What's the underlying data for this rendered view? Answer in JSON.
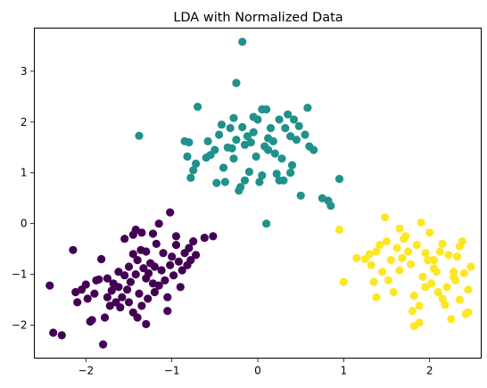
{
  "chart_data": {
    "type": "scatter",
    "title": "LDA with Normalized Data",
    "xlabel": "",
    "ylabel": "",
    "xlim": [
      -2.6,
      2.6
    ],
    "ylim": [
      -2.65,
      3.85
    ],
    "xticks": [
      -2,
      -1,
      0,
      1,
      2
    ],
    "yticks": [
      -2,
      -1,
      0,
      1,
      2,
      3
    ],
    "xtick_labels": [
      "−2",
      "−1",
      "0",
      "1",
      "2"
    ],
    "ytick_labels": [
      "−2",
      "−1",
      "0",
      "1",
      "2",
      "3"
    ],
    "grid": false,
    "legend": false,
    "series": [
      {
        "color": "#440154",
        "points": [
          [
            -2.42,
            -1.22
          ],
          [
            -2.38,
            -2.15
          ],
          [
            -2.28,
            -2.2
          ],
          [
            -2.1,
            -1.55
          ],
          [
            -2.05,
            -1.3
          ],
          [
            -2.0,
            -1.2
          ],
          [
            -1.98,
            -1.48
          ],
          [
            -1.95,
            -1.93
          ],
          [
            -1.93,
            -1.9
          ],
          [
            -1.9,
            -1.38
          ],
          [
            -1.85,
            -1.1
          ],
          [
            -1.82,
            -0.7
          ],
          [
            -1.8,
            -2.38
          ],
          [
            -1.78,
            -1.85
          ],
          [
            -1.75,
            -1.45
          ],
          [
            -1.7,
            -1.32
          ],
          [
            -1.68,
            -1.18
          ],
          [
            -1.65,
            -1.55
          ],
          [
            -1.62,
            -1.25
          ],
          [
            -1.6,
            -1.65
          ],
          [
            -1.58,
            -1.45
          ],
          [
            -1.55,
            -1.02
          ],
          [
            -1.52,
            -1.3
          ],
          [
            -1.5,
            -0.85
          ],
          [
            -1.48,
            -1.15
          ],
          [
            -1.45,
            -0.6
          ],
          [
            -1.45,
            -1.75
          ],
          [
            -1.42,
            -1.0
          ],
          [
            -1.4,
            -0.72
          ],
          [
            -1.38,
            -1.38
          ],
          [
            -1.36,
            -0.52
          ],
          [
            -1.35,
            -1.62
          ],
          [
            -1.33,
            -0.88
          ],
          [
            -1.3,
            -1.08
          ],
          [
            -1.28,
            -1.48
          ],
          [
            -1.27,
            -0.98
          ],
          [
            -1.25,
            -0.78
          ],
          [
            -1.22,
            -1.18
          ],
          [
            -1.2,
            -1.35
          ],
          [
            -1.18,
            -0.4
          ],
          [
            -1.15,
            -1.22
          ],
          [
            -1.12,
            -0.92
          ],
          [
            -1.1,
            -0.58
          ],
          [
            -1.08,
            -1.12
          ],
          [
            -1.05,
            -1.45
          ],
          [
            -1.02,
            -0.82
          ],
          [
            -1.0,
            -0.65
          ],
          [
            -0.98,
            -1.02
          ],
          [
            -0.95,
            -0.42
          ],
          [
            -0.92,
            -0.75
          ],
          [
            -0.9,
            -1.25
          ],
          [
            -0.88,
            -0.92
          ],
          [
            -0.85,
            -0.58
          ],
          [
            -0.82,
            -0.82
          ],
          [
            -0.8,
            -0.48
          ],
          [
            -0.78,
            -0.72
          ],
          [
            -0.75,
            -0.35
          ],
          [
            -0.72,
            -0.62
          ],
          [
            -0.62,
            -0.28
          ],
          [
            -0.52,
            -0.25
          ],
          [
            -1.45,
            -0.22
          ],
          [
            -1.42,
            -0.12
          ],
          [
            -1.4,
            -1.85
          ],
          [
            -1.3,
            -1.98
          ],
          [
            -1.22,
            -0.2
          ],
          [
            -1.15,
            0.0
          ],
          [
            -1.05,
            -1.72
          ],
          [
            -1.02,
            0.22
          ],
          [
            -1.3,
            -0.55
          ],
          [
            -1.5,
            -1.55
          ],
          [
            -1.62,
            -0.95
          ],
          [
            -1.72,
            -1.62
          ],
          [
            -1.88,
            -1.12
          ],
          [
            -2.12,
            -1.35
          ],
          [
            -2.15,
            -0.52
          ],
          [
            -1.55,
            -0.3
          ],
          [
            -1.35,
            -0.18
          ],
          [
            -1.2,
            -0.85
          ],
          [
            -0.95,
            -0.25
          ],
          [
            -1.75,
            -1.08
          ]
        ]
      },
      {
        "color": "#21918c",
        "points": [
          [
            -0.18,
            3.58
          ],
          [
            -1.38,
            1.73
          ],
          [
            -0.25,
            2.77
          ],
          [
            -0.7,
            2.3
          ],
          [
            -0.85,
            1.62
          ],
          [
            -0.8,
            1.6
          ],
          [
            -0.82,
            1.32
          ],
          [
            -0.72,
            1.18
          ],
          [
            -0.75,
            1.05
          ],
          [
            -0.78,
            0.9
          ],
          [
            -0.55,
            1.35
          ],
          [
            -0.5,
            1.45
          ],
          [
            -0.45,
            1.75
          ],
          [
            -0.42,
            1.95
          ],
          [
            -0.4,
            1.1
          ],
          [
            -0.38,
            0.82
          ],
          [
            -0.35,
            1.5
          ],
          [
            -0.32,
            1.88
          ],
          [
            -0.3,
            1.48
          ],
          [
            -0.28,
            1.28
          ],
          [
            -0.25,
            1.65
          ],
          [
            -0.22,
            0.65
          ],
          [
            -0.2,
            0.72
          ],
          [
            -0.18,
            1.9
          ],
          [
            -0.15,
            1.55
          ],
          [
            -0.12,
            1.72
          ],
          [
            -0.1,
            1.02
          ],
          [
            -0.08,
            1.6
          ],
          [
            -0.05,
            2.1
          ],
          [
            -0.02,
            1.32
          ],
          [
            0.0,
            2.05
          ],
          [
            0.02,
            0.82
          ],
          [
            0.05,
            2.25
          ],
          [
            0.08,
            1.52
          ],
          [
            0.1,
            2.25
          ],
          [
            0.12,
            1.68
          ],
          [
            0.15,
            1.88
          ],
          [
            0.18,
            1.62
          ],
          [
            0.2,
            1.38
          ],
          [
            0.22,
            0.98
          ],
          [
            0.25,
            2.05
          ],
          [
            0.28,
            1.28
          ],
          [
            0.3,
            0.85
          ],
          [
            0.32,
            1.88
          ],
          [
            0.35,
            2.15
          ],
          [
            0.38,
            1.72
          ],
          [
            0.4,
            1.15
          ],
          [
            0.42,
            2.05
          ],
          [
            0.45,
            1.65
          ],
          [
            0.48,
            1.92
          ],
          [
            0.5,
            0.55
          ],
          [
            0.55,
            1.75
          ],
          [
            0.58,
            2.28
          ],
          [
            0.6,
            1.52
          ],
          [
            0.65,
            1.45
          ],
          [
            0.75,
            0.5
          ],
          [
            0.82,
            0.45
          ],
          [
            0.85,
            0.35
          ],
          [
            0.95,
            0.88
          ],
          [
            0.1,
            0.0
          ],
          [
            0.12,
            1.45
          ],
          [
            -0.6,
            1.3
          ],
          [
            -0.48,
            0.8
          ],
          [
            -0.28,
            2.08
          ],
          [
            -0.05,
            1.8
          ],
          [
            0.05,
            0.95
          ],
          [
            0.25,
            0.85
          ],
          [
            -0.15,
            0.85
          ],
          [
            0.38,
            1.0
          ],
          [
            -0.58,
            1.62
          ]
        ]
      },
      {
        "color": "#fde725",
        "points": [
          [
            0.95,
            -0.12
          ],
          [
            1.0,
            -1.15
          ],
          [
            1.15,
            -0.68
          ],
          [
            1.25,
            -0.7
          ],
          [
            1.3,
            -0.6
          ],
          [
            1.32,
            -0.82
          ],
          [
            1.35,
            -1.15
          ],
          [
            1.38,
            -0.55
          ],
          [
            1.42,
            -0.42
          ],
          [
            1.45,
            -0.95
          ],
          [
            1.48,
            0.12
          ],
          [
            1.5,
            -0.35
          ],
          [
            1.55,
            -0.72
          ],
          [
            1.58,
            -1.35
          ],
          [
            1.62,
            -0.48
          ],
          [
            1.65,
            -0.1
          ],
          [
            1.68,
            -0.68
          ],
          [
            1.7,
            -0.3
          ],
          [
            1.72,
            -0.25
          ],
          [
            1.75,
            -0.55
          ],
          [
            1.78,
            -0.8
          ],
          [
            1.8,
            -1.72
          ],
          [
            1.82,
            -1.42
          ],
          [
            1.85,
            -0.42
          ],
          [
            1.88,
            -1.95
          ],
          [
            1.9,
            0.02
          ],
          [
            1.92,
            -1.05
          ],
          [
            1.95,
            -0.58
          ],
          [
            1.98,
            -0.72
          ],
          [
            2.0,
            -0.18
          ],
          [
            2.02,
            -1.18
          ],
          [
            2.05,
            -0.88
          ],
          [
            2.08,
            -0.95
          ],
          [
            2.1,
            -1.35
          ],
          [
            2.12,
            -0.55
          ],
          [
            2.15,
            -1.48
          ],
          [
            2.18,
            -1.6
          ],
          [
            2.2,
            -1.25
          ],
          [
            2.22,
            -0.62
          ],
          [
            2.25,
            -1.88
          ],
          [
            2.28,
            -1.05
          ],
          [
            2.3,
            -1.12
          ],
          [
            2.32,
            -0.65
          ],
          [
            2.35,
            -0.45
          ],
          [
            2.38,
            -0.35
          ],
          [
            2.4,
            -0.98
          ],
          [
            2.42,
            -1.78
          ],
          [
            2.45,
            -1.3
          ],
          [
            2.48,
            -0.85
          ],
          [
            2.45,
            -1.75
          ],
          [
            1.82,
            -2.02
          ],
          [
            1.95,
            -1.25
          ],
          [
            2.15,
            -0.4
          ],
          [
            1.65,
            -0.92
          ],
          [
            1.52,
            -1.12
          ],
          [
            1.38,
            -1.45
          ],
          [
            2.05,
            -0.72
          ],
          [
            2.28,
            -0.95
          ],
          [
            1.88,
            -1.62
          ],
          [
            2.35,
            -1.5
          ]
        ]
      }
    ]
  }
}
